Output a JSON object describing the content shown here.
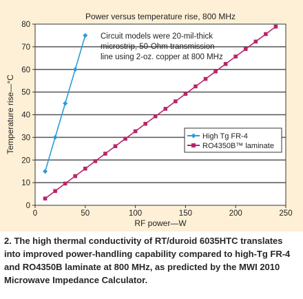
{
  "chart_data": {
    "type": "line",
    "title": "Power versus temperature rise, 800 MHz",
    "xlabel": "RF power—W",
    "ylabel": "Temperature rise—°C",
    "xlim": [
      0,
      250
    ],
    "ylim": [
      0,
      80
    ],
    "x_ticks": [
      0,
      50,
      100,
      150,
      200,
      250
    ],
    "y_ticks": [
      0,
      10,
      20,
      30,
      40,
      50,
      60,
      70,
      80
    ],
    "grid": "horizontal",
    "legend_position": "right",
    "annotation": [
      "Circuit models were 20-mil-thick",
      "microstrip, 50-Ohm transmission",
      "line using 2-oz. copper at 800 MHz"
    ],
    "series": [
      {
        "name": "High Tg FR-4",
        "color": "#2b9bd6",
        "marker": "diamond",
        "x": [
          10,
          20,
          30,
          40,
          50
        ],
        "y": [
          15,
          30,
          45,
          60,
          75
        ]
      },
      {
        "name": "RO4350B™ laminate",
        "color": "#b8256b",
        "marker": "square",
        "x": [
          10,
          20,
          30,
          40,
          50,
          60,
          70,
          80,
          90,
          100,
          110,
          120,
          130,
          140,
          150,
          160,
          170,
          180,
          190,
          200,
          210,
          220,
          230,
          240
        ],
        "y": [
          3,
          6.3,
          9.6,
          12.9,
          16.2,
          19.5,
          22.8,
          26.1,
          29.4,
          32.7,
          36,
          39.3,
          42.6,
          45.9,
          49.2,
          52.5,
          55.8,
          59.1,
          62.4,
          65.7,
          69,
          72.3,
          75.6,
          78.9
        ]
      }
    ]
  },
  "caption": "2. The high thermal conductivity of RT/duroid 6035HTC translates into improved power-handling capability compared to high-Tg FR-4 and RO4350B laminate at 800 MHz, as predicted by the MWI 2010 Microwave Impedance Calculator."
}
